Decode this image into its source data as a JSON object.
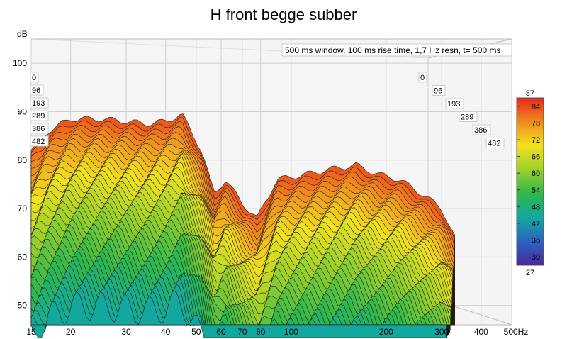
{
  "chart_data": {
    "type": "waterfall",
    "title": "H front begge subber",
    "annotation": "500 ms window, 100 ms rise time,  1,7 Hz resn, t= 500 ms",
    "y_unit": "dB",
    "y_ticks": [
      "100",
      "90",
      "80",
      "70",
      "60",
      "50"
    ],
    "y_range": [
      46,
      105
    ],
    "x_scale": "log",
    "x_range": [
      15,
      500
    ],
    "x_ticks": [
      "15",
      "20",
      "30",
      "40",
      "50",
      "60",
      "70",
      "80",
      "100",
      "200",
      "300",
      "400",
      "500Hz"
    ],
    "x_tick_values": [
      15,
      20,
      30,
      40,
      50,
      60,
      70,
      80,
      100,
      200,
      300,
      400,
      500
    ],
    "time_labels_left": [
      "0",
      "96",
      "193",
      "289",
      "386",
      "482"
    ],
    "time_labels_right": [
      "0",
      "96",
      "193",
      "289",
      "386",
      "482"
    ],
    "colorbar": {
      "max_label": "87",
      "min_label": "27",
      "ticks": [
        "84",
        "78",
        "72",
        "66",
        "60",
        "54",
        "48",
        "42",
        "36",
        "30"
      ],
      "colors": [
        "#e8281a",
        "#f08a1e",
        "#f2e21e",
        "#9bd02a",
        "#2fb84a",
        "#12a8a0",
        "#2c63c0",
        "#4a2a9c"
      ]
    },
    "slices": 40,
    "front_response": [
      {
        "f": 15,
        "db": 82
      },
      {
        "f": 17,
        "db": 86
      },
      {
        "f": 20,
        "db": 88.5
      },
      {
        "f": 25,
        "db": 88.5
      },
      {
        "f": 30,
        "db": 88
      },
      {
        "f": 35,
        "db": 87.5
      },
      {
        "f": 40,
        "db": 88
      },
      {
        "f": 45,
        "db": 89.5
      },
      {
        "f": 52,
        "db": 82
      },
      {
        "f": 57,
        "db": 73
      },
      {
        "f": 62,
        "db": 76
      },
      {
        "f": 70,
        "db": 71
      },
      {
        "f": 78,
        "db": 68
      },
      {
        "f": 90,
        "db": 76
      },
      {
        "f": 110,
        "db": 77
      },
      {
        "f": 130,
        "db": 78
      },
      {
        "f": 160,
        "db": 79
      },
      {
        "f": 190,
        "db": 77
      },
      {
        "f": 220,
        "db": 76
      },
      {
        "f": 260,
        "db": 73
      },
      {
        "f": 300,
        "db": 70
      },
      {
        "f": 330,
        "db": 64
      }
    ]
  }
}
